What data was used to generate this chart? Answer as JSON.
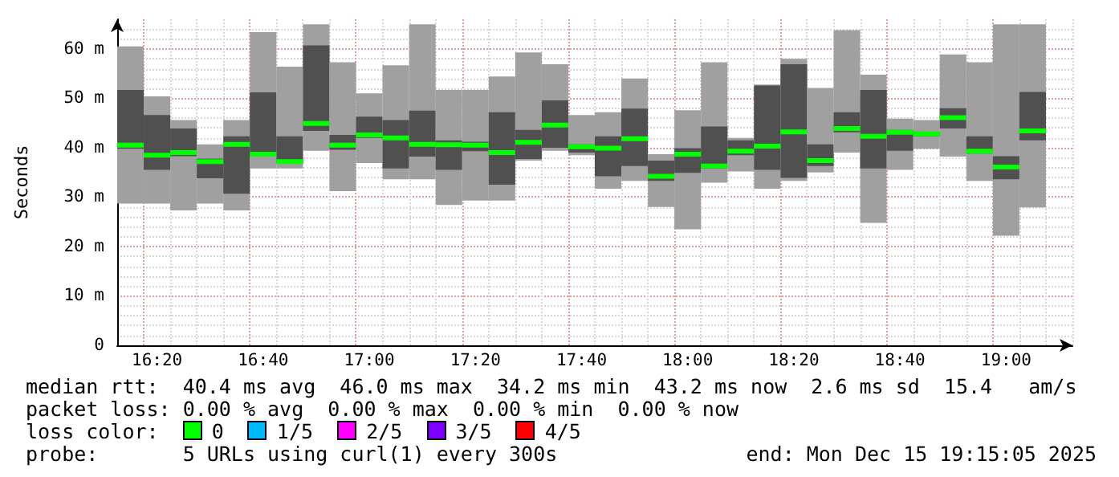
{
  "chart_data": {
    "type": "box",
    "ylabel": "Seconds",
    "categories": [
      null,
      "16:20",
      null,
      null,
      null,
      "16:40",
      null,
      null,
      null,
      "17:00",
      null,
      null,
      null,
      "17:20",
      null,
      null,
      null,
      "17:40",
      null,
      null,
      null,
      "18:00",
      null,
      null,
      null,
      "18:20",
      null,
      null,
      null,
      "18:40",
      null,
      null,
      null,
      "19:00",
      null,
      null
    ],
    "ylim": [
      0,
      66
    ],
    "yticks": [
      0,
      {
        "value": 10,
        "label": "10 m"
      },
      {
        "value": 20,
        "label": "20 m"
      },
      {
        "value": 30,
        "label": "30 m"
      },
      {
        "value": 40,
        "label": "40 m"
      },
      {
        "value": 50,
        "label": "50 m"
      },
      {
        "value": 60,
        "label": "60 m"
      }
    ],
    "grid": true,
    "series": [
      {
        "color": "#505050",
        "boxes": [
          {
            "low": 28.7,
            "q1": 39.8,
            "median": 40.5,
            "q3": 51.7,
            "high": 60.5
          },
          {
            "low": 28.7,
            "q1": 35.5,
            "median": 38.5,
            "q3": 46.6,
            "high": 50.4
          },
          {
            "low": 27.3,
            "q1": 38.3,
            "median": 39.0,
            "q3": 43.9,
            "high": 45.6
          },
          {
            "low": 28.7,
            "q1": 33.8,
            "median": 37.2,
            "q3": 37.8,
            "high": 40.7
          },
          {
            "low": 27.3,
            "q1": 30.7,
            "median": 40.7,
            "q3": 42.3,
            "high": 45.6
          },
          {
            "low": 35.8,
            "q1": 38.3,
            "median": 38.7,
            "q3": 51.2,
            "high": 63.4
          },
          {
            "low": 35.8,
            "q1": 36.9,
            "median": 37.2,
            "q3": 42.3,
            "high": 56.4
          },
          {
            "low": 39.4,
            "q1": 43.4,
            "median": 44.9,
            "q3": 60.7,
            "high": 65.0
          },
          {
            "low": 31.2,
            "q1": 39.6,
            "median": 40.5,
            "q3": 42.6,
            "high": 57.3
          },
          {
            "low": 36.9,
            "q1": 42.0,
            "median": 42.6,
            "q3": 46.3,
            "high": 51.0
          },
          {
            "low": 33.6,
            "q1": 35.8,
            "median": 42.0,
            "q3": 45.6,
            "high": 56.7
          },
          {
            "low": 33.6,
            "q1": 38.2,
            "median": 40.7,
            "q3": 47.5,
            "high": 65.0
          },
          {
            "low": 28.4,
            "q1": 35.5,
            "median": 40.6,
            "q3": 41.5,
            "high": 51.7
          },
          {
            "low": 29.3,
            "q1": 39.3,
            "median": 40.5,
            "q3": 41.2,
            "high": 51.7
          },
          {
            "low": 29.3,
            "q1": 32.5,
            "median": 39.0,
            "q3": 47.2,
            "high": 54.4
          },
          {
            "low": 37.4,
            "q1": 37.7,
            "median": 41.1,
            "q3": 43.6,
            "high": 59.3
          },
          {
            "low": 39.4,
            "q1": 40.0,
            "median": 44.6,
            "q3": 49.6,
            "high": 56.9
          },
          {
            "low": 38.5,
            "q1": 39.0,
            "median": 40.2,
            "q3": 40.7,
            "high": 46.6
          },
          {
            "low": 31.7,
            "q1": 34.2,
            "median": 39.9,
            "q3": 42.3,
            "high": 47.2
          },
          {
            "low": 33.3,
            "q1": 36.3,
            "median": 41.8,
            "q3": 47.9,
            "high": 54.0
          },
          {
            "low": 28.0,
            "q1": 33.3,
            "median": 34.2,
            "q3": 37.4,
            "high": 38.7
          },
          {
            "low": 23.5,
            "q1": 34.9,
            "median": 38.7,
            "q3": 39.9,
            "high": 47.6
          },
          {
            "low": 32.9,
            "q1": 35.8,
            "median": 36.3,
            "q3": 44.3,
            "high": 57.3
          },
          {
            "low": 35.2,
            "q1": 38.5,
            "median": 39.3,
            "q3": 41.5,
            "high": 42.0
          },
          {
            "low": 31.7,
            "q1": 35.5,
            "median": 40.3,
            "q3": 52.6,
            "high": 52.8
          },
          {
            "low": 33.3,
            "q1": 33.9,
            "median": 43.2,
            "q3": 56.9,
            "high": 58.0
          },
          {
            "low": 35.0,
            "q1": 36.3,
            "median": 37.4,
            "q3": 40.7,
            "high": 52.1
          },
          {
            "low": 39.0,
            "q1": 43.1,
            "median": 43.9,
            "q3": 47.2,
            "high": 63.8
          },
          {
            "low": 24.8,
            "q1": 35.8,
            "median": 42.3,
            "q3": 51.7,
            "high": 54.8
          },
          {
            "low": 35.5,
            "q1": 39.4,
            "median": 43.1,
            "q3": 43.6,
            "high": 45.9
          },
          {
            "low": 39.8,
            "q1": 42.3,
            "median": 42.8,
            "q3": 43.1,
            "high": 45.6
          },
          {
            "low": 38.2,
            "q1": 43.9,
            "median": 46.1,
            "q3": 48.0,
            "high": 58.9
          },
          {
            "low": 33.3,
            "q1": 38.8,
            "median": 39.3,
            "q3": 42.3,
            "high": 57.3
          },
          {
            "low": 22.2,
            "q1": 33.6,
            "median": 36.1,
            "q3": 38.3,
            "high": 65.0
          },
          {
            "low": 27.9,
            "q1": 41.5,
            "median": 43.4,
            "q3": 51.3,
            "high": 65.0
          },
          null
        ]
      }
    ],
    "annotations": [
      "median rtt:  40.4 ms avg  46.0 ms max  34.2 ms min  43.2 ms now  2.6 ms sd  15.4   am/s",
      "packet loss: 0.00 % avg  0.00 % max  0.00 % min  0.00 % now",
      "loss color:",
      "0",
      "1/5",
      "2/5",
      "3/5",
      "4/5",
      "probe:       5 URLs using curl(1) every 300s",
      "end: Mon Dec 15 19:15:05 2025"
    ]
  }
}
